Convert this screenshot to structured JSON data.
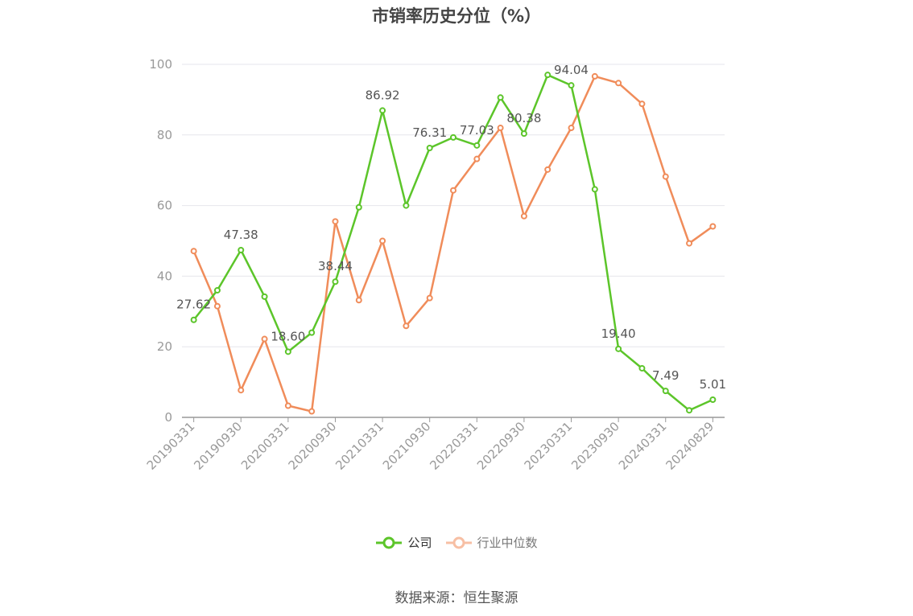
{
  "title": "市销率历史分位（%）",
  "source": "数据来源：恒生聚源",
  "legend": {
    "company": "公司",
    "industry": "行业中位数"
  },
  "colors": {
    "company": "#5cc52a",
    "industry": "#f08c5a",
    "grid": "#e6e6ec",
    "axis": "#999999",
    "tick_text": "#999999",
    "label_text": "#555555"
  },
  "chart_data": {
    "type": "line",
    "title": "市销率历史分位（%）",
    "ylim": [
      0,
      100
    ],
    "yticks": [
      0,
      20,
      40,
      60,
      80,
      100
    ],
    "grid": true,
    "legend_position": "bottom",
    "x": [
      "20190331",
      "20190630",
      "20190930",
      "20191231",
      "20200331",
      "20200630",
      "20200930",
      "20201231",
      "20210331",
      "20210630",
      "20210930",
      "20211231",
      "20220331",
      "20220630",
      "20220930",
      "20221231",
      "20230331",
      "20230630",
      "20230930",
      "20231231",
      "20240331",
      "20240630",
      "20240829"
    ],
    "xtick_labels": [
      "20190331",
      "20190930",
      "20200331",
      "20200930",
      "20210331",
      "20210930",
      "20220331",
      "20220930",
      "20230331",
      "20230930",
      "20240331",
      "20240829"
    ],
    "series": [
      {
        "name": "公司",
        "values": [
          27.62,
          36.0,
          47.38,
          34.2,
          18.6,
          24.0,
          38.44,
          59.5,
          86.92,
          60.0,
          76.31,
          79.3,
          77.03,
          90.6,
          80.38,
          97.0,
          94.04,
          64.6,
          19.4,
          13.9,
          7.49,
          2.0,
          5.01
        ]
      },
      {
        "name": "行业中位数",
        "values": [
          47.1,
          31.5,
          7.7,
          22.2,
          3.3,
          1.7,
          55.5,
          33.2,
          50.0,
          25.9,
          33.8,
          64.3,
          73.2,
          82.0,
          57.0,
          70.2,
          82.0,
          96.6,
          94.7,
          88.8,
          68.2,
          49.3,
          54.1
        ]
      }
    ],
    "data_labels": [
      {
        "series": "公司",
        "index": 0,
        "text": "27.62"
      },
      {
        "series": "公司",
        "index": 2,
        "text": "47.38"
      },
      {
        "series": "公司",
        "index": 4,
        "text": "18.60"
      },
      {
        "series": "公司",
        "index": 6,
        "text": "38.44"
      },
      {
        "series": "公司",
        "index": 8,
        "text": "86.92"
      },
      {
        "series": "公司",
        "index": 10,
        "text": "76.31"
      },
      {
        "series": "公司",
        "index": 12,
        "text": "77.03"
      },
      {
        "series": "公司",
        "index": 14,
        "text": "80.38"
      },
      {
        "series": "公司",
        "index": 16,
        "text": "94.04"
      },
      {
        "series": "公司",
        "index": 18,
        "text": "19.40"
      },
      {
        "series": "公司",
        "index": 20,
        "text": "7.49"
      },
      {
        "series": "公司",
        "index": 22,
        "text": "5.01"
      }
    ]
  }
}
